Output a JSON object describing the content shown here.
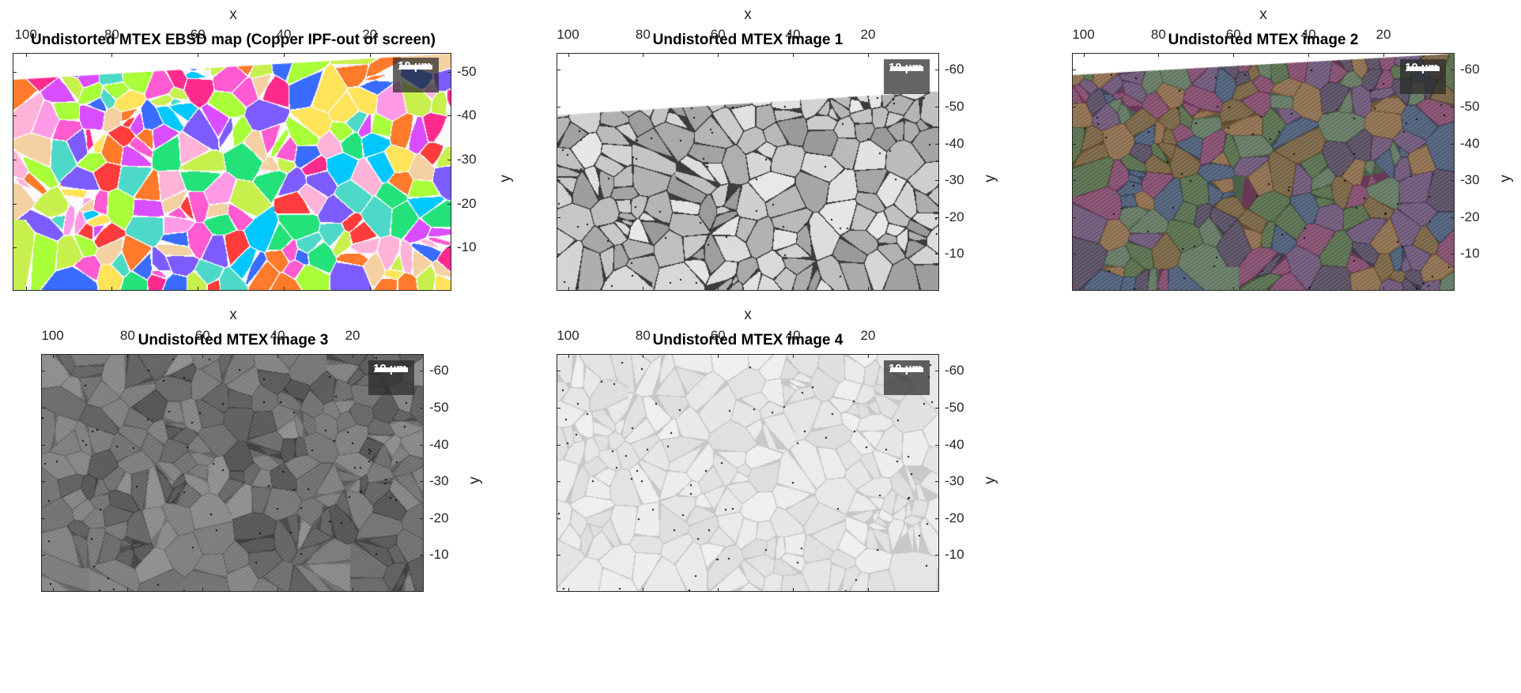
{
  "figure": {
    "panels": [
      {
        "id": "ebsd",
        "title": "Undistorted MTEX EBSD map (Copper IPF-out of screen)",
        "xlabel": "x",
        "ylabel": "y",
        "xticks": [
          "100",
          "80",
          "60",
          "40",
          "20"
        ],
        "yticks": [
          "-50",
          "-40",
          "-30",
          "-20",
          "-10"
        ],
        "scalebar": "10 µm",
        "style": "ipf_color"
      },
      {
        "id": "img1",
        "title": "Undistorted MTEX image 1",
        "xlabel": "x",
        "ylabel": "y",
        "xticks": [
          "100",
          "80",
          "60",
          "40",
          "20"
        ],
        "yticks": [
          "-60",
          "-50",
          "-40",
          "-30",
          "-20",
          "-10"
        ],
        "scalebar": "10 µm",
        "style": "grey_boundaries"
      },
      {
        "id": "img2",
        "title": "Undistorted MTEX image 2",
        "xlabel": "x",
        "ylabel": "y",
        "xticks": [
          "100",
          "80",
          "60",
          "40",
          "20"
        ],
        "yticks": [
          "-60",
          "-50",
          "-40",
          "-30",
          "-20",
          "-10"
        ],
        "scalebar": "10 µm",
        "style": "muted_color"
      },
      {
        "id": "img3",
        "title": "Undistorted MTEX image 3",
        "xlabel": "x",
        "ylabel": "y",
        "xticks": [
          "100",
          "80",
          "60",
          "40",
          "20"
        ],
        "yticks": [
          "-60",
          "-50",
          "-40",
          "-30",
          "-20",
          "-10"
        ],
        "scalebar": "10 µm",
        "style": "dark_grey"
      },
      {
        "id": "img4",
        "title": "Undistorted MTEX image 4",
        "xlabel": "x",
        "ylabel": "y",
        "xticks": [
          "100",
          "80",
          "60",
          "40",
          "20"
        ],
        "yticks": [
          "-60",
          "-50",
          "-40",
          "-30",
          "-20",
          "-10"
        ],
        "scalebar": "10 µm",
        "style": "light_grey"
      }
    ]
  },
  "colors": {
    "axis": "#262626",
    "background": "#ffffff"
  }
}
